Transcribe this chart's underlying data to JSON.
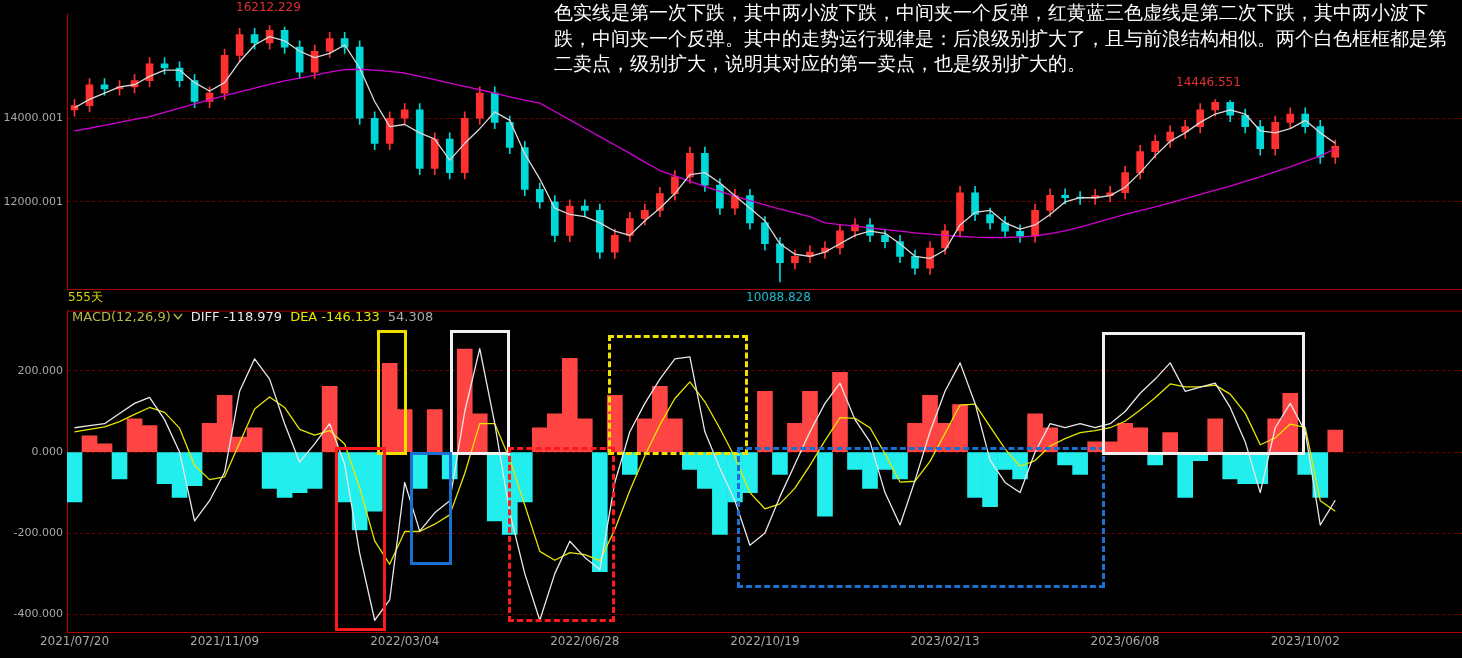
{
  "chart_data": [
    {
      "type": "candlestick",
      "categories": [
        "2021/07/20",
        null,
        null,
        null,
        null,
        null,
        null,
        null,
        null,
        null,
        "2021/11/09",
        null,
        null,
        null,
        null,
        null,
        null,
        null,
        null,
        null,
        null,
        null,
        "2022/03/04",
        null,
        null,
        null,
        null,
        null,
        null,
        null,
        null,
        null,
        null,
        null,
        "2022/06/28",
        null,
        null,
        null,
        null,
        null,
        null,
        null,
        null,
        null,
        null,
        null,
        "2022/10/19",
        null,
        null,
        null,
        null,
        null,
        null,
        null,
        null,
        null,
        null,
        null,
        "2023/02/13",
        null,
        null,
        null,
        null,
        null,
        null,
        null,
        null,
        null,
        null,
        null,
        "2023/06/08",
        null,
        null,
        null,
        null,
        null,
        null,
        null,
        null,
        null,
        null,
        null,
        "2023/10/02",
        null,
        null
      ],
      "ohlc": [
        [
          14200,
          14450,
          14050,
          14300
        ],
        [
          14300,
          14950,
          14150,
          14800
        ],
        [
          14800,
          14950,
          14550,
          14700
        ],
        [
          14700,
          14900,
          14550,
          14750
        ],
        [
          14750,
          15050,
          14600,
          14900
        ],
        [
          14900,
          15450,
          14750,
          15300
        ],
        [
          15300,
          15450,
          15050,
          15200
        ],
        [
          15200,
          15350,
          14750,
          14900
        ],
        [
          14900,
          15050,
          14250,
          14400
        ],
        [
          14400,
          14750,
          14250,
          14600
        ],
        [
          14600,
          15650,
          14450,
          15500
        ],
        [
          15500,
          16150,
          15350,
          16000
        ],
        [
          16000,
          16150,
          15650,
          15800
        ],
        [
          15800,
          16212.229,
          15650,
          16100
        ],
        [
          16100,
          16180,
          15550,
          15700
        ],
        [
          15700,
          15850,
          14950,
          15100
        ],
        [
          15100,
          15750,
          14950,
          15600
        ],
        [
          15600,
          16050,
          15450,
          15900
        ],
        [
          15900,
          16050,
          15550,
          15700
        ],
        [
          15700,
          15850,
          13850,
          14000
        ],
        [
          14000,
          14150,
          13250,
          13400
        ],
        [
          13400,
          14150,
          13250,
          14000
        ],
        [
          14000,
          14350,
          13850,
          14200
        ],
        [
          14200,
          14350,
          12650,
          12800
        ],
        [
          12800,
          13650,
          12650,
          13500
        ],
        [
          13500,
          13650,
          12550,
          12700
        ],
        [
          12700,
          14150,
          12550,
          14000
        ],
        [
          14000,
          14750,
          13850,
          14600
        ],
        [
          14600,
          14750,
          13750,
          13900
        ],
        [
          13900,
          14050,
          13150,
          13300
        ],
        [
          13300,
          13450,
          12150,
          12300
        ],
        [
          12300,
          12450,
          11850,
          12000
        ],
        [
          12000,
          12150,
          11050,
          11200
        ],
        [
          11200,
          12050,
          11050,
          11900
        ],
        [
          11900,
          12050,
          11650,
          11800
        ],
        [
          11800,
          11950,
          10650,
          10800
        ],
        [
          10800,
          11350,
          10650,
          11200
        ],
        [
          11200,
          11750,
          11050,
          11600
        ],
        [
          11600,
          11950,
          11450,
          11800
        ],
        [
          11800,
          12350,
          11650,
          12200
        ],
        [
          12200,
          12750,
          12050,
          12600
        ],
        [
          12600,
          13310,
          12450,
          13160
        ],
        [
          13160,
          13310,
          12250,
          12400
        ],
        [
          12400,
          12550,
          11700,
          11850
        ],
        [
          11850,
          12300,
          11700,
          12150
        ],
        [
          12150,
          12300,
          11350,
          11500
        ],
        [
          11500,
          11650,
          10850,
          11000
        ],
        [
          11000,
          11150,
          10088.828,
          10550
        ],
        [
          10550,
          10850,
          10400,
          10700
        ],
        [
          10700,
          10950,
          10550,
          10800
        ],
        [
          10800,
          11050,
          10650,
          10900
        ],
        [
          10900,
          11460,
          10750,
          11310
        ],
        [
          11310,
          11600,
          11160,
          11450
        ],
        [
          11450,
          11600,
          11050,
          11200
        ],
        [
          11200,
          11350,
          10900,
          11050
        ],
        [
          11050,
          11200,
          10550,
          10700
        ],
        [
          10700,
          10850,
          10270,
          10420
        ],
        [
          10420,
          11050,
          10270,
          10900
        ],
        [
          10900,
          11460,
          10750,
          11310
        ],
        [
          11310,
          12370,
          11160,
          12220
        ],
        [
          12220,
          12370,
          11550,
          11700
        ],
        [
          11700,
          11850,
          11350,
          11500
        ],
        [
          11500,
          11650,
          11150,
          11300
        ],
        [
          11300,
          11450,
          11030,
          11180
        ],
        [
          11180,
          11950,
          11030,
          11800
        ],
        [
          11800,
          12310,
          11650,
          12160
        ],
        [
          12160,
          12310,
          11950,
          12100
        ],
        [
          12100,
          12250,
          11940,
          12090
        ],
        [
          12090,
          12300,
          11940,
          12150
        ],
        [
          12150,
          12370,
          12000,
          12220
        ],
        [
          12220,
          12850,
          12070,
          12700
        ],
        [
          12700,
          13350,
          12550,
          13200
        ],
        [
          13200,
          13600,
          13050,
          13450
        ],
        [
          13450,
          13820,
          13300,
          13670
        ],
        [
          13670,
          13950,
          13520,
          13800
        ],
        [
          13800,
          14350,
          13650,
          14200
        ],
        [
          14200,
          14446.551,
          14050,
          14380
        ],
        [
          14380,
          14420,
          13920,
          14070
        ],
        [
          14070,
          14220,
          13650,
          13800
        ],
        [
          13800,
          13950,
          13120,
          13270
        ],
        [
          13270,
          14050,
          13120,
          13900
        ],
        [
          13900,
          14250,
          13750,
          14100
        ],
        [
          14100,
          14250,
          13650,
          13800
        ],
        [
          13800,
          13950,
          12920,
          13070
        ],
        [
          13070,
          13480,
          12920,
          13330
        ]
      ],
      "series": [
        {
          "type": "line",
          "color": "#d8d8d8",
          "values": [
            14250,
            14450,
            14600,
            14750,
            14800,
            15000,
            15150,
            15150,
            14850,
            14650,
            14850,
            15350,
            15750,
            15950,
            15850,
            15600,
            15450,
            15550,
            15750,
            15200,
            14400,
            13800,
            13850,
            13650,
            13500,
            13000,
            13400,
            13750,
            14150,
            13950,
            13150,
            12550,
            11850,
            11700,
            11650,
            11500,
            11300,
            11200,
            11550,
            11850,
            12200,
            12650,
            12700,
            12450,
            12150,
            11850,
            11550,
            11000,
            10750,
            10700,
            10800,
            11000,
            11200,
            11300,
            11250,
            11000,
            10700,
            10650,
            10850,
            11450,
            11750,
            11800,
            11500,
            11350,
            11450,
            11700,
            12000,
            12100,
            12100,
            12150,
            12350,
            12700,
            13100,
            13450,
            13650,
            13900,
            14100,
            14200,
            14100,
            13700,
            13650,
            13750,
            13950,
            13650,
            13400
          ]
        },
        {
          "type": "line",
          "color": "#d000d0",
          "values": [
            13700,
            13760,
            13830,
            13900,
            13970,
            14040,
            14140,
            14240,
            14340,
            14440,
            14540,
            14630,
            14720,
            14810,
            14890,
            14960,
            15030,
            15100,
            15160,
            15170,
            15150,
            15120,
            15080,
            15000,
            14920,
            14840,
            14760,
            14680,
            14600,
            14510,
            14430,
            14360,
            14160,
            13960,
            13760,
            13560,
            13360,
            13160,
            12950,
            12750,
            12620,
            12490,
            12370,
            12250,
            12140,
            12030,
            11930,
            11830,
            11740,
            11650,
            11500,
            11460,
            11420,
            11380,
            11340,
            11300,
            11260,
            11230,
            11200,
            11180,
            11160,
            11150,
            11150,
            11160,
            11190,
            11240,
            11310,
            11400,
            11500,
            11600,
            11700,
            11790,
            11880,
            11980,
            12080,
            12180,
            12280,
            12380,
            12490,
            12600,
            12720,
            12840,
            12970,
            13100,
            13270
          ]
        }
      ],
      "ylim": [
        9910,
        16490
      ],
      "yticks": [
        14000.001,
        12000.001
      ],
      "grid": "y",
      "tick_labels": "y",
      "annotations": [
        "16212.229",
        "14446.551",
        "10088.828",
        "555天",
        "色实线是第一次下跌，其中两小波下跌，中间夹一个反弹，红黄蓝三色虚线是第二次下跌，其中两小波下跌，中间夹一个反弹。其中的走势运行规律是：后浪级别扩大了，且与前浪结构相似。两个白色框框都是第二卖点，级别扩大，说明其对应的第一卖点，也是级别扩大的。"
      ]
    },
    {
      "type": "bar",
      "title": "MACD(12,26,9)",
      "categories": [
        "2021/07/20",
        null,
        null,
        null,
        null,
        null,
        null,
        null,
        null,
        null,
        "2021/11/09",
        null,
        null,
        null,
        null,
        null,
        null,
        null,
        null,
        null,
        null,
        null,
        "2022/03/04",
        null,
        null,
        null,
        null,
        null,
        null,
        null,
        null,
        null,
        null,
        null,
        "2022/06/28",
        null,
        null,
        null,
        null,
        null,
        null,
        null,
        null,
        null,
        null,
        null,
        "2022/10/19",
        null,
        null,
        null,
        null,
        null,
        null,
        null,
        null,
        null,
        null,
        null,
        "2023/02/13",
        null,
        null,
        null,
        null,
        null,
        null,
        null,
        null,
        null,
        null,
        null,
        "2023/06/08",
        null,
        null,
        null,
        null,
        null,
        null,
        null,
        null,
        null,
        null,
        null,
        "2023/10/02",
        null,
        null
      ],
      "series": [
        {
          "type": "bar",
          "values": [
            -123,
            40,
            20,
            -66,
            82,
            65,
            -78,
            -112,
            -83,
            71,
            140,
            37,
            60,
            -90,
            -112,
            -100,
            -90,
            162,
            -123,
            -192,
            -146,
            219,
            105,
            -90,
            105,
            -66,
            254,
            94,
            -170,
            -203,
            -123,
            60,
            94,
            231,
            82,
            -295,
            140,
            -55,
            82,
            162,
            82,
            -43,
            -90,
            -203,
            -123,
            -100,
            150,
            -55,
            71,
            150,
            -158,
            197,
            -43,
            -90,
            -43,
            -66,
            71,
            140,
            71,
            117,
            -112,
            -135,
            -43,
            -66,
            94,
            60,
            -32,
            -55,
            25,
            25,
            71,
            60,
            -32,
            48,
            -112,
            -21,
            82,
            -66,
            -78,
            -78,
            82,
            145,
            -55,
            -112,
            54.308
          ],
          "colors": [
            "#22eeee",
            "#ff4444",
            "#ff4444",
            "#22eeee",
            "#ff4444",
            "#ff4444",
            "#22eeee",
            "#22eeee",
            "#22eeee",
            "#ff4444",
            "#ff4444",
            "#ff4444",
            "#ff4444",
            "#22eeee",
            "#22eeee",
            "#22eeee",
            "#22eeee",
            "#ff4444",
            "#22eeee",
            "#22eeee",
            "#22eeee",
            "#ff4444",
            "#ff4444",
            "#22eeee",
            "#ff4444",
            "#22eeee",
            "#ff4444",
            "#ff4444",
            "#22eeee",
            "#22eeee",
            "#22eeee",
            "#ff4444",
            "#ff4444",
            "#ff4444",
            "#ff4444",
            "#22eeee",
            "#ff4444",
            "#22eeee",
            "#ff4444",
            "#ff4444",
            "#ff4444",
            "#22eeee",
            "#22eeee",
            "#22eeee",
            "#22eeee",
            "#22eeee",
            "#ff4444",
            "#22eeee",
            "#ff4444",
            "#ff4444",
            "#22eeee",
            "#ff4444",
            "#22eeee",
            "#22eeee",
            "#22eeee",
            "#22eeee",
            "#ff4444",
            "#ff4444",
            "#ff4444",
            "#ff4444",
            "#22eeee",
            "#22eeee",
            "#22eeee",
            "#22eeee",
            "#ff4444",
            "#ff4444",
            "#22eeee",
            "#22eeee",
            "#ff4444",
            "#ff4444",
            "#ff4444",
            "#ff4444",
            "#22eeee",
            "#ff4444",
            "#22eeee",
            "#22eeee",
            "#ff4444",
            "#22eeee",
            "#22eeee",
            "#22eeee",
            "#ff4444",
            "#ff4444",
            "#22eeee",
            "#22eeee",
            "#ff4444"
          ]
        },
        {
          "type": "line",
          "name": "DIFF -118.979",
          "color": "#e8e8e8",
          "values": [
            60,
            65,
            70,
            95,
            120,
            135,
            80,
            0,
            -170,
            -120,
            -50,
            150,
            230,
            180,
            70,
            -25,
            20,
            70,
            -30,
            -250,
            -415,
            -365,
            -75,
            -195,
            -150,
            -120,
            100,
            255,
            70,
            -150,
            -300,
            -415,
            -300,
            -220,
            -260,
            -290,
            -75,
            50,
            120,
            180,
            230,
            235,
            50,
            -40,
            -120,
            -230,
            -200,
            -110,
            -30,
            50,
            120,
            170,
            80,
            25,
            -100,
            -180,
            -70,
            50,
            150,
            220,
            120,
            -20,
            -75,
            -100,
            0,
            70,
            60,
            70,
            60,
            70,
            100,
            145,
            180,
            220,
            150,
            160,
            170,
            110,
            25,
            -100,
            60,
            120,
            50,
            -180,
            -118.979
          ]
        },
        {
          "type": "line",
          "name": "DEA -146.133",
          "color": "#e6e600",
          "values": [
            50,
            56,
            62,
            75,
            93,
            110,
            98,
            59,
            -33,
            -68,
            -61,
            23,
            106,
            136,
            110,
            56,
            42,
            53,
            20,
            -88,
            -219,
            -277,
            -196,
            -196,
            -178,
            -155,
            -53,
            70,
            70,
            -18,
            -131,
            -245,
            -267,
            -248,
            -253,
            -268,
            -191,
            -95,
            -9,
            67,
            132,
            173,
            124,
            58,
            -13,
            -100,
            -140,
            -128,
            -89,
            -33,
            28,
            85,
            83,
            60,
            -4,
            -74,
            -72,
            -23,
            46,
            116,
            118,
            63,
            8,
            -35,
            -21,
            15,
            33,
            48,
            53,
            60,
            76,
            104,
            134,
            168,
            161,
            161,
            165,
            143,
            96,
            18,
            35,
            69,
            61,
            -120,
            -146.133
          ]
        }
      ],
      "ylim": [
        -444,
        349
      ],
      "yticks": [
        {
          "value": 200,
          "label": "200.000"
        },
        {
          "value": 0,
          "label": "0.000"
        },
        {
          "value": -200,
          "label": "-200.000"
        },
        {
          "value": -400,
          "label": "-400.000"
        }
      ],
      "grid": "y",
      "annotations": [
        "54.308"
      ]
    }
  ]
}
